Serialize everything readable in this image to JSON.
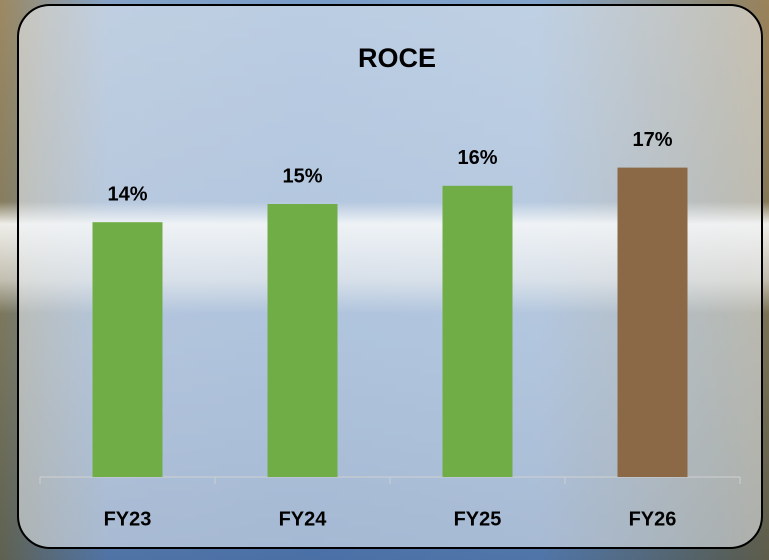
{
  "chart_data": {
    "type": "bar",
    "title": "ROCE",
    "categories": [
      "FY23",
      "FY24",
      "FY25",
      "FY26"
    ],
    "values": [
      14,
      15,
      16,
      17
    ],
    "value_labels": [
      "14%",
      "15%",
      "16%",
      "17%"
    ],
    "colors": [
      "#70ad47",
      "#70ad47",
      "#70ad47",
      "#8b6946"
    ],
    "ylim": [
      0,
      20
    ]
  }
}
